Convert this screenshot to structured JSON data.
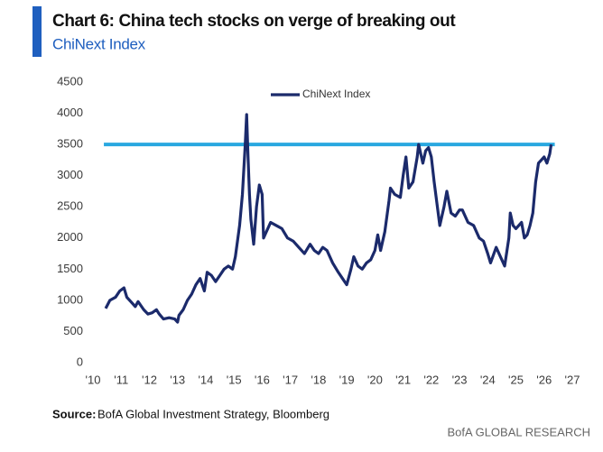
{
  "chart_data": {
    "type": "line",
    "title": "Chart 6:  China tech stocks on verge of breaking out",
    "subtitle": "ChiNext Index",
    "source_label": "Source:",
    "source": "BofA Global Investment Strategy, Bloomberg",
    "brand": "BofA GLOBAL RESEARCH",
    "legend_position": "top",
    "ylim": [
      0,
      4500
    ],
    "yticks": [
      0,
      500,
      1000,
      1500,
      2000,
      2500,
      3000,
      3500,
      4000,
      4500
    ],
    "xlim": [
      2010,
      2027
    ],
    "xticks": [
      {
        "value": 2010,
        "label": "'10"
      },
      {
        "value": 2011,
        "label": "'11"
      },
      {
        "value": 2012,
        "label": "'12"
      },
      {
        "value": 2013,
        "label": "'13"
      },
      {
        "value": 2014,
        "label": "'14"
      },
      {
        "value": 2015,
        "label": "'15"
      },
      {
        "value": 2016,
        "label": "'16"
      },
      {
        "value": 2017,
        "label": "'17"
      },
      {
        "value": 2018,
        "label": "'18"
      },
      {
        "value": 2019,
        "label": "'19"
      },
      {
        "value": 2020,
        "label": "'20"
      },
      {
        "value": 2021,
        "label": "'21"
      },
      {
        "value": 2022,
        "label": "'22"
      },
      {
        "value": 2023,
        "label": "'23"
      },
      {
        "value": 2024,
        "label": "'24"
      },
      {
        "value": 2025,
        "label": "'25"
      },
      {
        "value": 2026,
        "label": "'26"
      },
      {
        "value": 2027,
        "label": "'27"
      }
    ],
    "reference_line": {
      "value": 3500,
      "color": "#29a8e0"
    },
    "x": [
      2010.45,
      2010.6,
      2010.8,
      2010.95,
      2011.1,
      2011.2,
      2011.4,
      2011.5,
      2011.6,
      2011.8,
      2011.95,
      2012.1,
      2012.25,
      2012.35,
      2012.5,
      2012.7,
      2012.9,
      2013.0,
      2013.05,
      2013.2,
      2013.35,
      2013.5,
      2013.65,
      2013.8,
      2013.95,
      2014.05,
      2014.2,
      2014.35,
      2014.5,
      2014.65,
      2014.8,
      2014.95,
      2015.05,
      2015.2,
      2015.3,
      2015.4,
      2015.45,
      2015.5,
      2015.55,
      2015.6,
      2015.7,
      2015.8,
      2015.9,
      2016.0,
      2016.05,
      2016.15,
      2016.3,
      2016.5,
      2016.7,
      2016.9,
      2017.1,
      2017.3,
      2017.5,
      2017.7,
      2017.85,
      2018.0,
      2018.15,
      2018.3,
      2018.5,
      2018.7,
      2018.85,
      2019.0,
      2019.15,
      2019.25,
      2019.4,
      2019.55,
      2019.7,
      2019.85,
      2020.0,
      2020.1,
      2020.2,
      2020.35,
      2020.5,
      2020.55,
      2020.7,
      2020.9,
      2021.0,
      2021.1,
      2021.2,
      2021.35,
      2021.5,
      2021.55,
      2021.7,
      2021.8,
      2021.9,
      2022.0,
      2022.1,
      2022.3,
      2022.45,
      2022.55,
      2022.7,
      2022.85,
      2023.0,
      2023.1,
      2023.3,
      2023.5,
      2023.7,
      2023.85,
      2024.0,
      2024.1,
      2024.3,
      2024.5,
      2024.6,
      2024.75,
      2024.8,
      2024.9,
      2025.0,
      2025.2,
      2025.3,
      2025.4,
      2025.5,
      2025.6,
      2025.7,
      2025.8,
      2025.9,
      2026.0,
      2026.1,
      2026.2,
      2026.25
    ],
    "series": [
      {
        "name": "ChiNext Index",
        "color": "#1b2a6b",
        "values": [
          870,
          1000,
          1050,
          1150,
          1200,
          1050,
          950,
          900,
          980,
          850,
          780,
          800,
          850,
          780,
          700,
          720,
          700,
          650,
          760,
          850,
          1000,
          1100,
          1250,
          1350,
          1150,
          1450,
          1400,
          1300,
          1400,
          1500,
          1550,
          1500,
          1700,
          2200,
          2700,
          3500,
          3980,
          3300,
          2700,
          2300,
          1900,
          2500,
          2850,
          2700,
          2000,
          2100,
          2250,
          2200,
          2150,
          2000,
          1950,
          1850,
          1750,
          1900,
          1800,
          1750,
          1850,
          1800,
          1600,
          1450,
          1350,
          1250,
          1500,
          1700,
          1550,
          1500,
          1600,
          1650,
          1800,
          2050,
          1800,
          2100,
          2600,
          2800,
          2700,
          2650,
          3000,
          3300,
          2800,
          2900,
          3300,
          3500,
          3200,
          3400,
          3450,
          3300,
          2900,
          2200,
          2500,
          2750,
          2400,
          2350,
          2450,
          2450,
          2250,
          2200,
          2000,
          1950,
          1750,
          1600,
          1850,
          1650,
          1550,
          2000,
          2400,
          2200,
          2150,
          2250,
          2000,
          2050,
          2200,
          2400,
          2900,
          3200,
          3250,
          3300,
          3200,
          3350,
          3500
        ]
      }
    ]
  }
}
